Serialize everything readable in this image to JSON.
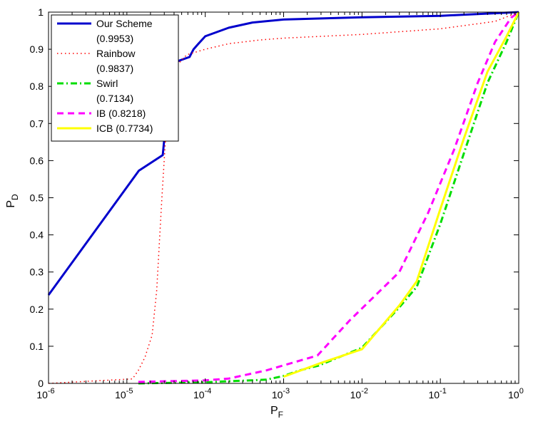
{
  "chart_data": {
    "type": "line",
    "xscale": "log",
    "xlim": [
      1e-06,
      1
    ],
    "ylim": [
      0,
      1
    ],
    "xlabel": {
      "main": "P",
      "sub": "F"
    },
    "ylabel": {
      "main": "P",
      "sub": "D"
    },
    "x_ticks": [
      {
        "value": 1e-06,
        "base": "10",
        "exp": "-6"
      },
      {
        "value": 1e-05,
        "base": "10",
        "exp": "-5"
      },
      {
        "value": 0.0001,
        "base": "10",
        "exp": "-4"
      },
      {
        "value": 0.001,
        "base": "10",
        "exp": "-3"
      },
      {
        "value": 0.01,
        "base": "10",
        "exp": "-2"
      },
      {
        "value": 0.1,
        "base": "10",
        "exp": "-1"
      },
      {
        "value": 1,
        "base": "10",
        "exp": "0"
      }
    ],
    "y_ticks": [
      {
        "value": 0,
        "label": "0"
      },
      {
        "value": 0.1,
        "label": "0.1"
      },
      {
        "value": 0.2,
        "label": "0.2"
      },
      {
        "value": 0.3,
        "label": "0.3"
      },
      {
        "value": 0.4,
        "label": "0.4"
      },
      {
        "value": 0.5,
        "label": "0.5"
      },
      {
        "value": 0.6,
        "label": "0.6"
      },
      {
        "value": 0.7,
        "label": "0.7"
      },
      {
        "value": 0.8,
        "label": "0.8"
      },
      {
        "value": 0.9,
        "label": "0.9"
      },
      {
        "value": 1,
        "label": "1"
      }
    ],
    "grid": false,
    "legend_position": "top-left",
    "series": [
      {
        "name": "Our Scheme",
        "legend_lines": [
          "Our Scheme",
          "(0.9953)"
        ],
        "color": "#0000cc",
        "style": "solid",
        "points": [
          [
            1e-06,
            0.238
          ],
          [
            1.42e-05,
            0.573
          ],
          [
            2.87e-05,
            0.615
          ],
          [
            3.72e-05,
            0.862
          ],
          [
            5.2e-05,
            0.873
          ],
          [
            6.3e-05,
            0.879
          ],
          [
            7.1e-05,
            0.9
          ],
          [
            8.2e-05,
            0.915
          ],
          [
            0.0001,
            0.935
          ],
          [
            0.0002,
            0.958
          ],
          [
            0.0004,
            0.972
          ],
          [
            0.001,
            0.98
          ],
          [
            0.01,
            0.986
          ],
          [
            0.1,
            0.99
          ],
          [
            1,
            1
          ]
        ]
      },
      {
        "name": "Rainbow",
        "legend_lines": [
          "Rainbow",
          "(0.9837)"
        ],
        "color": "#ff0000",
        "style": "dotted",
        "points": [
          [
            1e-06,
            0.0
          ],
          [
            1.18e-05,
            0.012
          ],
          [
            1.4e-05,
            0.035
          ],
          [
            1.7e-05,
            0.07
          ],
          [
            2.1e-05,
            0.13
          ],
          [
            2.4e-05,
            0.25
          ],
          [
            2.8e-05,
            0.5
          ],
          [
            3.2e-05,
            0.7
          ],
          [
            3.7e-05,
            0.8
          ],
          [
            4.5e-05,
            0.86
          ],
          [
            5.8e-05,
            0.885
          ],
          [
            0.0001,
            0.9
          ],
          [
            0.0002,
            0.915
          ],
          [
            0.0005,
            0.925
          ],
          [
            0.001,
            0.93
          ],
          [
            0.01,
            0.94
          ],
          [
            0.1,
            0.955
          ],
          [
            0.5,
            0.975
          ],
          [
            1,
            1
          ]
        ]
      },
      {
        "name": "Swirl",
        "legend_lines": [
          "Swirl",
          "(0.7134)"
        ],
        "color": "#00dd00",
        "style": "dashdot",
        "points": [
          [
            1.4e-05,
            0.0
          ],
          [
            0.0001,
            0.003
          ],
          [
            0.0006,
            0.01
          ],
          [
            0.001,
            0.02
          ],
          [
            0.0016,
            0.035
          ],
          [
            0.0028,
            0.048
          ],
          [
            0.01,
            0.096
          ],
          [
            0.03,
            0.205
          ],
          [
            0.05,
            0.26
          ],
          [
            0.1,
            0.43
          ],
          [
            0.2,
            0.62
          ],
          [
            0.4,
            0.81
          ],
          [
            0.7,
            0.92
          ],
          [
            1,
            1
          ]
        ]
      },
      {
        "name": "IB",
        "legend_lines": [
          "IB (0.8218)"
        ],
        "color": "#ff00ff",
        "style": "dashed",
        "points": [
          [
            1.4e-05,
            0.004
          ],
          [
            0.0001,
            0.008
          ],
          [
            0.0002,
            0.013
          ],
          [
            0.0006,
            0.035
          ],
          [
            0.0027,
            0.075
          ],
          [
            0.007,
            0.17
          ],
          [
            0.03,
            0.3
          ],
          [
            0.07,
            0.46
          ],
          [
            0.15,
            0.63
          ],
          [
            0.3,
            0.81
          ],
          [
            0.5,
            0.92
          ],
          [
            0.8,
            0.985
          ],
          [
            1,
            1
          ]
        ]
      },
      {
        "name": "ICB",
        "legend_lines": [
          "ICB (0.7734)"
        ],
        "color": "#ffff00",
        "style": "solid",
        "points": [
          [
            0.001,
            0.018
          ],
          [
            0.003,
            0.055
          ],
          [
            0.01,
            0.092
          ],
          [
            0.03,
            0.21
          ],
          [
            0.05,
            0.275
          ],
          [
            0.1,
            0.47
          ],
          [
            0.2,
            0.66
          ],
          [
            0.4,
            0.84
          ],
          [
            0.7,
            0.935
          ],
          [
            1,
            1
          ]
        ]
      }
    ]
  }
}
